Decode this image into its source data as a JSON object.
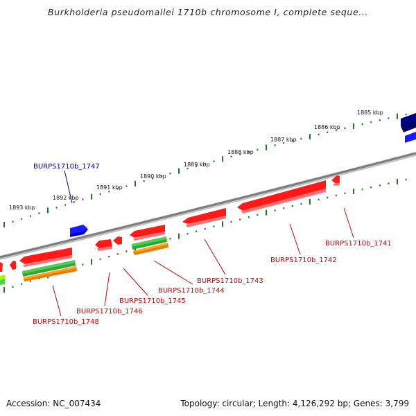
{
  "title": "Burkholderia pseudomallei 1710b chromosome I, complete seque...",
  "accession": "Accession: NC_007434",
  "topology": "Topology: circular; Length: 4,126,292 bp; Genes: 3,799",
  "colors": {
    "backbone": "#8a8a8a",
    "forward_gene": "#1a1aff",
    "reverse_gene": "#ff1a1a",
    "green_track": "#33bb33",
    "orange_track": "#ff9900",
    "dark_gene": "#000080",
    "label_forward": "#000099",
    "label_reverse": "#cc0000"
  },
  "kbp_labels": [
    "1885 kbp",
    "1886 kbp",
    "1887 kbp",
    "1888 kbp",
    "1889 kbp",
    "1890 kbp",
    "1891 kbp",
    "1892 kbp",
    "1893 kbp"
  ],
  "gene_labels": [
    "BURPS1710b_1747",
    "BURPS1710b_1741",
    "BURPS1710b_1742",
    "BURPS1710b_1743",
    "BURPS1710b_1744",
    "BURPS1710b_1745",
    "BURPS1710b_1746",
    "BURPS1710b_1748"
  ]
}
